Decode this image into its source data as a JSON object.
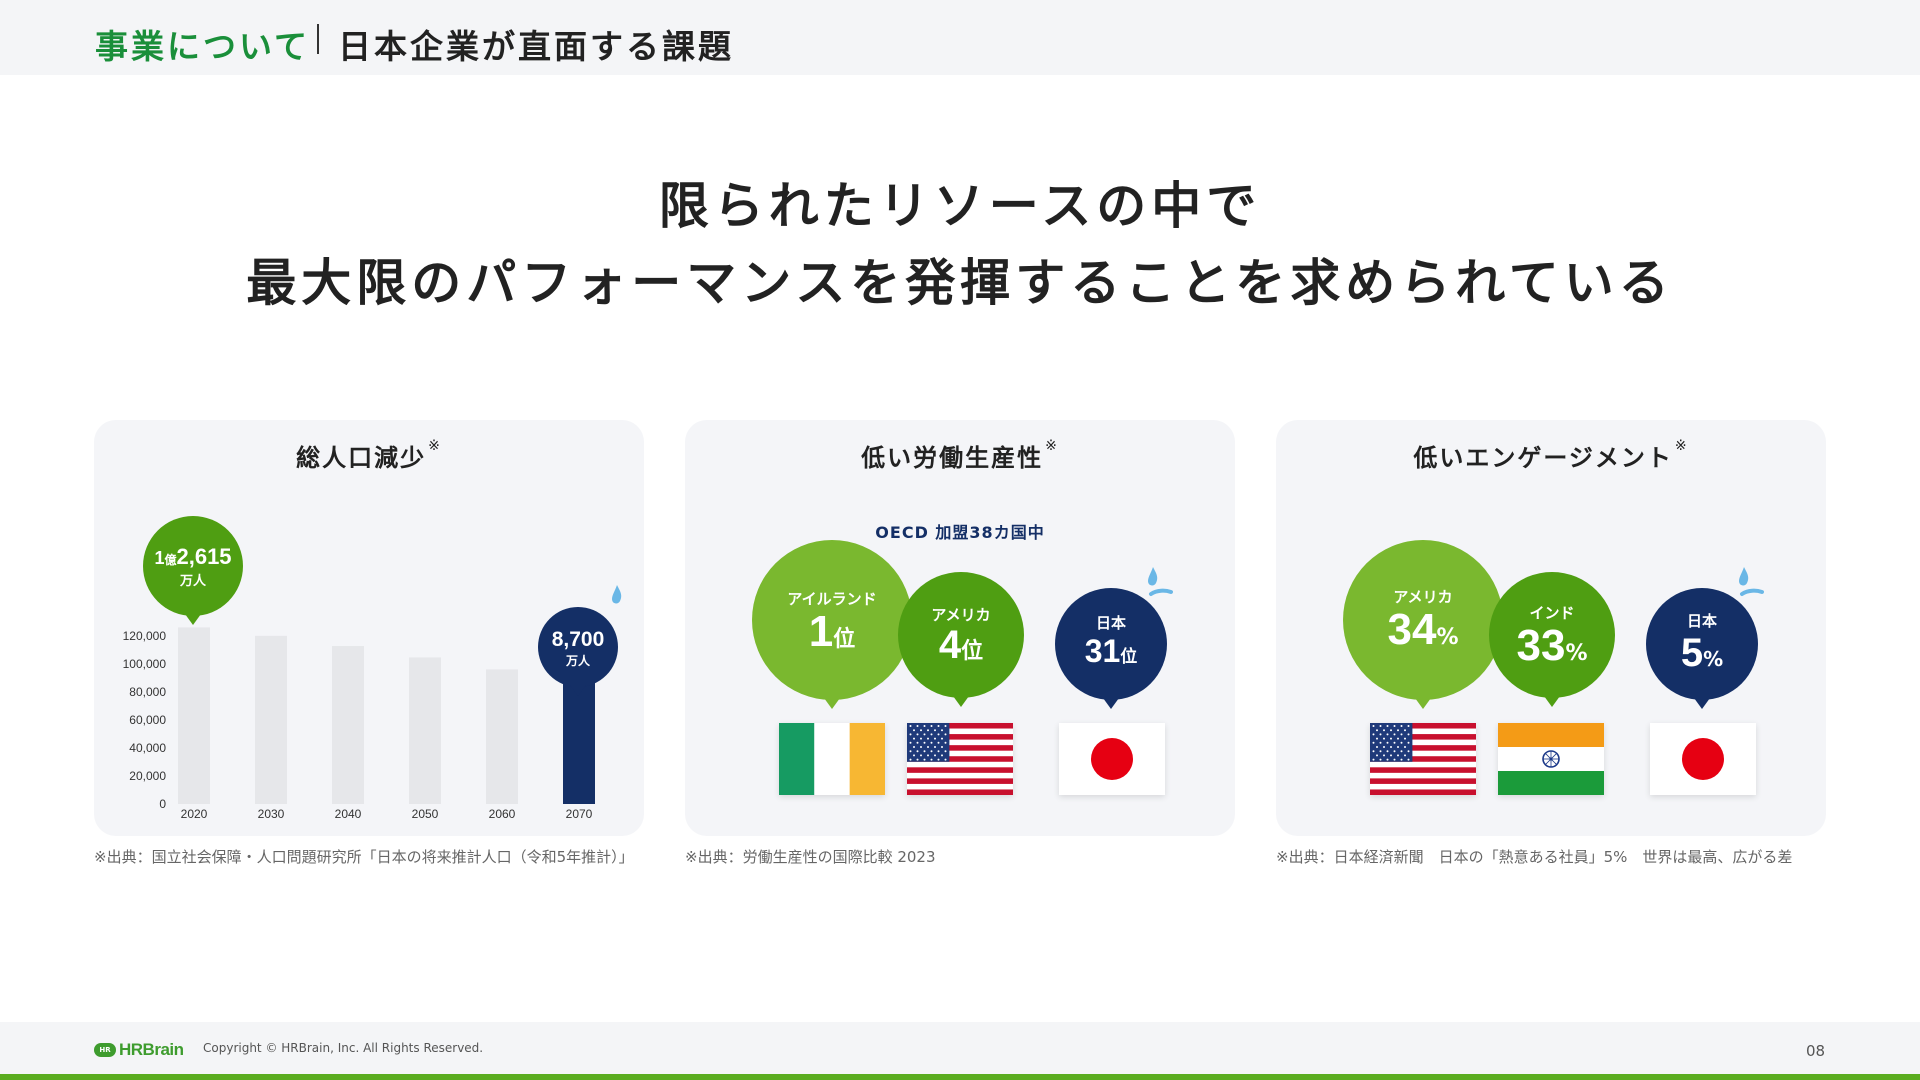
{
  "header": {
    "section": "事業について",
    "title": "日本企業が直面する課題"
  },
  "headline": {
    "line1": "限られたリソースの中で",
    "line2": "最大限のパフォーマンスを発揮することを求められている"
  },
  "cards": {
    "population": {
      "title": "総人口減少",
      "mark": "※",
      "source": "※出典：国立社会保障・人口問題研究所「日本の将来推計人口（令和5年推計）」",
      "callout_start": {
        "pre": "1",
        "unit_small": "億",
        "main": "2,615",
        "sub": "万人"
      },
      "callout_end": {
        "main": "8,700",
        "sub": "万人"
      }
    },
    "productivity": {
      "title": "低い労働生産性",
      "mark": "※",
      "subtitle": "OECD 加盟38カ国中",
      "source": "※出典：労働生産性の国際比較 2023",
      "items": [
        {
          "country": "アイルランド",
          "rank": "1",
          "suffix": "位"
        },
        {
          "country": "アメリカ",
          "rank": "4",
          "suffix": "位"
        },
        {
          "country": "日本",
          "rank": "31",
          "suffix": "位"
        }
      ]
    },
    "engagement": {
      "title": "低いエンゲージメント",
      "mark": "※",
      "source": "※出典：日本経済新聞　日本の「熱意ある社員」5%　世界は最高、広がる差",
      "items": [
        {
          "country": "アメリカ",
          "value": "34",
          "suffix": "%"
        },
        {
          "country": "インド",
          "value": "33",
          "suffix": "%"
        },
        {
          "country": "日本",
          "value": "5",
          "suffix": "%"
        }
      ]
    }
  },
  "chart_data": {
    "type": "bar",
    "categories": [
      "2020",
      "2030",
      "2040",
      "2050",
      "2060",
      "2070"
    ],
    "values": [
      126150,
      120116,
      112837,
      104686,
      96148,
      87000
    ],
    "ylim": [
      0,
      120000
    ],
    "yticks": [
      "0",
      "20,000",
      "40,000",
      "60,000",
      "80,000",
      "100,000",
      "120,000"
    ],
    "highlight_index": 5,
    "colors": {
      "bar": "#e6e7ea",
      "highlight": "#142f66"
    }
  },
  "colors": {
    "accent_green": "#1a8f3a",
    "bubble_light": "#7ab82f",
    "bubble_dark": "#4f9e12",
    "japan_navy": "#142f66"
  },
  "icons": {
    "sweat": "sweat-drop-icon"
  },
  "footer": {
    "logo_badge": "HR",
    "logo": "HRBrain",
    "copyright": "Copyright © HRBrain, Inc. All Rights Reserved.",
    "page": "08"
  }
}
